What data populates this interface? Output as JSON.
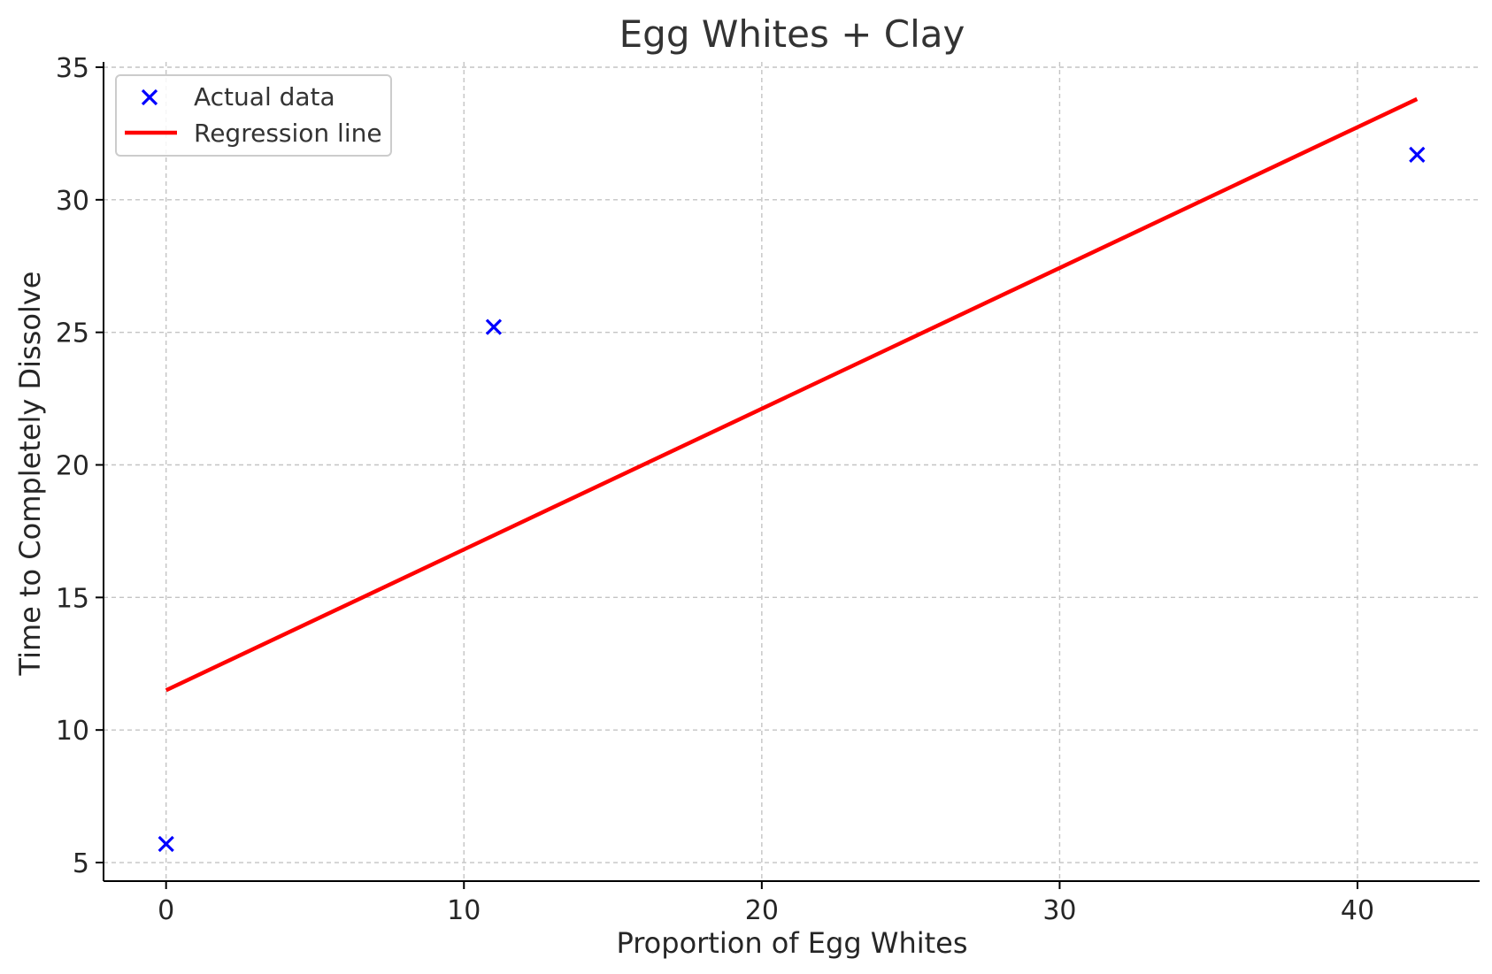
{
  "chart_data": {
    "type": "scatter",
    "title": "Egg Whites + Clay",
    "xlabel": "Proportion of Egg Whites",
    "ylabel": "Time to Completely Dissolve",
    "xlim": [
      -2.1,
      44.1
    ],
    "ylim": [
      4.3,
      35.2
    ],
    "xticks": [
      0,
      10,
      20,
      30,
      40
    ],
    "yticks": [
      5,
      10,
      15,
      20,
      25,
      30,
      35
    ],
    "grid": true,
    "legend_position": "top-left",
    "series": [
      {
        "name": "Actual data",
        "kind": "scatter",
        "marker": "x",
        "color": "#0000ff",
        "x": [
          0,
          11,
          42
        ],
        "y": [
          5.7,
          25.2,
          31.7
        ]
      },
      {
        "name": "Regression line",
        "kind": "line",
        "color": "#ff0000",
        "x": [
          0,
          42
        ],
        "y": [
          11.5,
          33.8
        ]
      }
    ]
  }
}
